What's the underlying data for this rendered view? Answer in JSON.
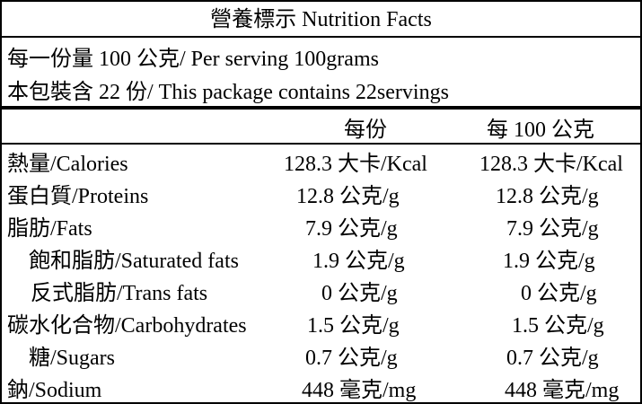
{
  "title": "營養標示 Nutrition Facts",
  "serving": {
    "per_serving": "每一份量  100 公克/ Per serving 100grams",
    "package": "本包裝含    22 份/ This package contains 22servings"
  },
  "columns": {
    "per_serving": "每份",
    "per_100g": "每 100 公克"
  },
  "rows": [
    {
      "label": "熱量/Calories",
      "per_serving": "128.3 大卡/Kcal",
      "per_100g": "128.3 大卡/Kcal"
    },
    {
      "label": "蛋白質/Proteins",
      "per_serving": "12.8 公克/g",
      "per_100g": "12.8 公克/g"
    },
    {
      "label": "脂肪/Fats",
      "per_serving": "7.9 公克/g",
      "per_100g": "7.9 公克/g"
    },
    {
      "label": "飽和脂肪/Saturated fats",
      "per_serving": "1.9 公克/g",
      "per_100g": "1.9 公克/g"
    },
    {
      "label": "反式脂肪/Trans fats",
      "per_serving": "0 公克/g",
      "per_100g": "0 公克/g"
    },
    {
      "label": "碳水化合物/Carbohydrates",
      "per_serving": "1.5 公克/g",
      "per_100g": "1.5 公克/g"
    },
    {
      "label": "糖/Sugars",
      "per_serving": "0.7 公克/g",
      "per_100g": "0.7 公克/g"
    },
    {
      "label": "鈉/Sodium",
      "per_serving": "448 毫克/mg",
      "per_100g": "448 毫克/mg"
    }
  ]
}
